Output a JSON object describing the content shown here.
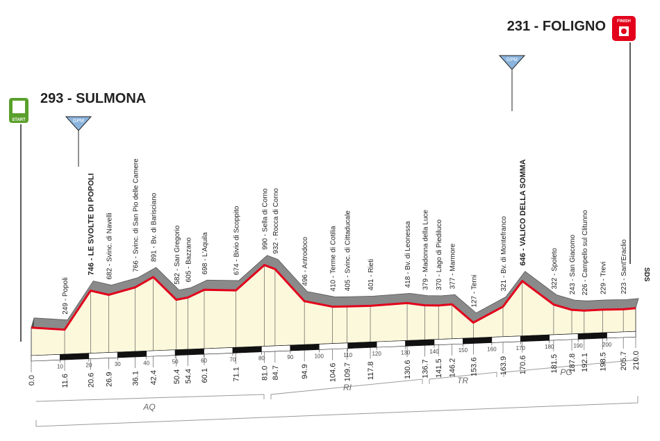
{
  "chart_data": {
    "type": "profile",
    "xlim": [
      0,
      210
    ],
    "xticks": [
      10,
      20,
      30,
      40,
      50,
      60,
      70,
      80,
      90,
      100,
      110,
      120,
      130,
      140,
      150,
      160,
      170,
      180,
      190,
      200
    ],
    "x": [
      {
        "value": 0,
        "label": "0.0"
      },
      11.6,
      20.6,
      26.9,
      36.1,
      42.4,
      50.4,
      54.4,
      60.1,
      71.1,
      {
        "value": 81,
        "label": "81.0"
      },
      84.7,
      94.9,
      104.6,
      109.7,
      117.8,
      130.6,
      136.7,
      141.5,
      146.2,
      153.6,
      163.9,
      170.6,
      181.5,
      187.8,
      192.1,
      198.5,
      205.7,
      {
        "value": 210,
        "label": "210.0"
      }
    ],
    "values": [
      293,
      249,
      746,
      682,
      766,
      891,
      582,
      605,
      698,
      674,
      990,
      932,
      496,
      410,
      405,
      401,
      418,
      379,
      370,
      377,
      127,
      321,
      646,
      322,
      243,
      226,
      229,
      223,
      231
    ],
    "value_labels": [
      "293 - SULMONA",
      "249 - Popoli",
      "746 - LE SVOLTE DI POPOLI",
      "682 - Svinc. di Navelli",
      "766 - Svinc. di San Pio delle Camere",
      "891 - Bv. di Barisciano",
      "582 - San Gregorio",
      "605 - Bazzano",
      "698 - L'Aquila",
      "674 - Bivio di Scoppito",
      "990 - Sella di Corno",
      "932 - Rocca di Corno",
      "496 - Antrodoco",
      "410 - Terme di Cotilia",
      "405 - Svinc. di Cittaducale",
      "401 - Rieti",
      "418 - Bv. di Leonessa",
      "379 - Madonna della Luce",
      "370 - Lago di Piediluco",
      "377 - Marmore",
      "127 - Terni",
      "321 - Bv. di Montefranco",
      "646 - VALICO DELLA SOMMA",
      "322 - Spoleto",
      "243 - San Giacomo",
      "226 - Campello sul Clitunno",
      "229 - Trevi",
      "223 - Sant'Eraclio",
      "231 - FOLIGNO"
    ],
    "color": "#e3001b",
    "regions": [
      "AQ",
      "RI",
      "TR",
      "PG"
    ],
    "start_label": "START",
    "finish_label": "FINISH",
    "gpm_label": "GPM",
    "sds_label": "SDS"
  }
}
